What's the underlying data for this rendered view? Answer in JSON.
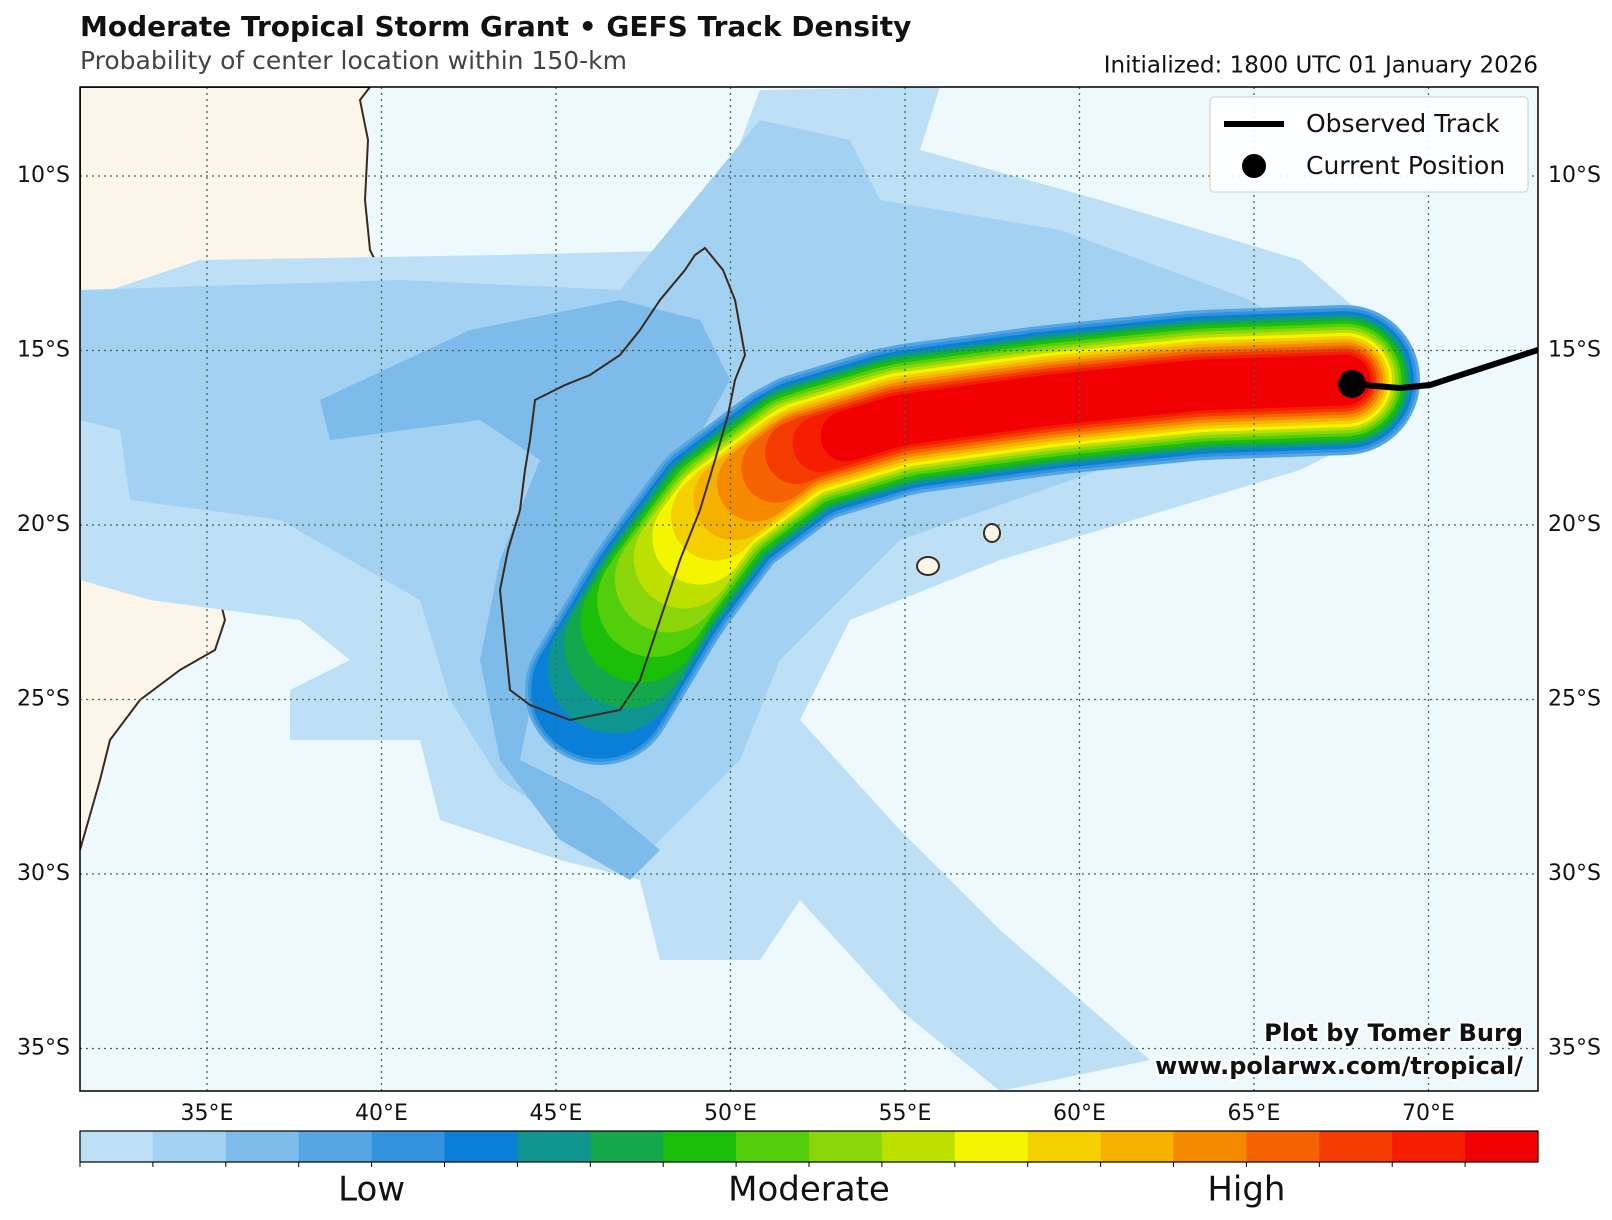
{
  "header": {
    "title": "Moderate Tropical Storm Grant • GEFS Track Density",
    "subtitle": "Probability of center location within 150-km",
    "initialized": "Initialized: 1800 UTC 01 January 2026"
  },
  "map": {
    "lon_labels": [
      "35°E",
      "40°E",
      "45°E",
      "50°E",
      "55°E",
      "60°E",
      "65°E",
      "70°E"
    ],
    "lat_labels": [
      "10°S",
      "15°S",
      "20°S",
      "25°S",
      "30°S",
      "35°S"
    ],
    "legend": [
      "Observed Track",
      "Current Position"
    ],
    "credits": [
      "Plot by Tomer Burg",
      "www.polarwx.com/tropical/"
    ]
  },
  "colorbar": {
    "colors": [
      "#bde0f7",
      "#a3d1f2",
      "#7dbbea",
      "#56a6e3",
      "#3393dd",
      "#0a7fd8",
      "#0f9590",
      "#14a84c",
      "#1bbf0a",
      "#52cf0a",
      "#8ad60a",
      "#bde000",
      "#f5f500",
      "#f5d000",
      "#f5b000",
      "#f58a00",
      "#f56400",
      "#f53c00",
      "#f51e00",
      "#f00000"
    ],
    "labels": [
      "Low",
      "Moderate",
      "High"
    ]
  }
}
